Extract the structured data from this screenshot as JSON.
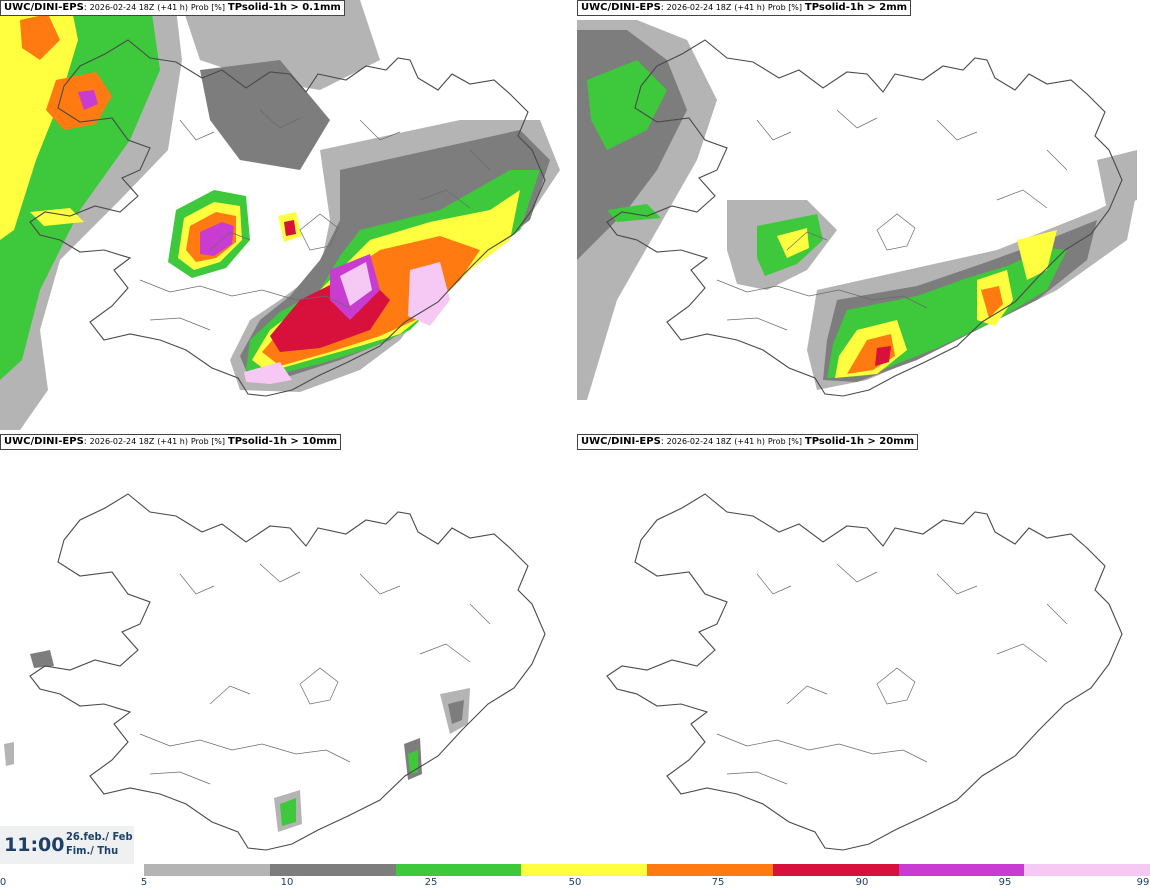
{
  "panels": [
    {
      "model": "UWC/DINI-EPS",
      "run": "2026-02-24 18Z",
      "lead": "(+41 h)",
      "prob": "Prob [%]",
      "field": "TPsolid-1h > 0.1mm"
    },
    {
      "model": "UWC/DINI-EPS",
      "run": "2026-02-24 18Z",
      "lead": "(+41 h)",
      "prob": "Prob [%]",
      "field": "TPsolid-1h > 2mm"
    },
    {
      "model": "UWC/DINI-EPS",
      "run": "2026-02-24 18Z",
      "lead": "(+41 h)",
      "prob": "Prob [%]",
      "field": "TPsolid-1h > 10mm"
    },
    {
      "model": "UWC/DINI-EPS",
      "run": "2026-02-24 18Z",
      "lead": "(+41 h)",
      "prob": "Prob [%]",
      "field": "TPsolid-1h > 20mm"
    }
  ],
  "valid_time": {
    "time": "11:00",
    "date": "26.feb./ Feb",
    "day": "Fim./ Thu"
  },
  "colorbar": {
    "ticks": [
      "0",
      "5",
      "10",
      "25",
      "50",
      "75",
      "90",
      "95",
      "99"
    ],
    "colors": [
      "#ffffff",
      "#b4b4b4",
      "#7d7d7d",
      "#3ec83c",
      "#ffff40",
      "#ff7a10",
      "#d8103c",
      "#c83cd2",
      "#f6c8f4"
    ]
  }
}
